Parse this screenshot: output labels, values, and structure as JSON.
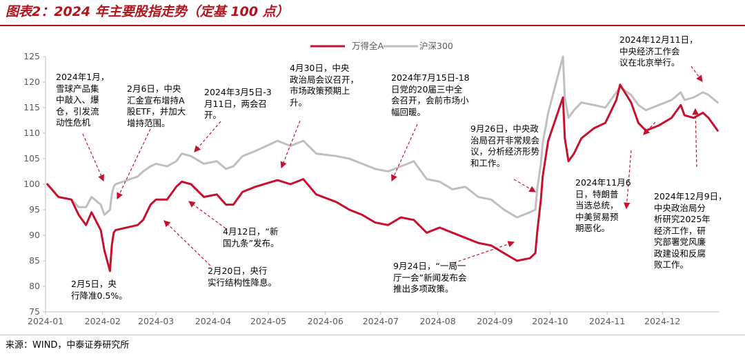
{
  "title": "图表2：2024 年主要股指走势（定基 100 点）",
  "source": "来源：WIND，中泰证券研究所",
  "colors": {
    "wande": "#c8102e",
    "hs300": "#bfbfbf",
    "accent": "#b5121b"
  },
  "chart_data": {
    "type": "line",
    "x_ticks": [
      "2024-01",
      "2024-02",
      "2024-03",
      "2024-04",
      "2024-05",
      "2024-06",
      "2024-07",
      "2024-08",
      "2024-09",
      "2024-10",
      "2024-11",
      "2024-12"
    ],
    "ylim": [
      75,
      125
    ],
    "y_ticks": [
      75,
      80,
      85,
      90,
      95,
      100,
      105,
      110,
      115,
      120,
      125
    ],
    "legend_position": "top-center",
    "series": [
      {
        "name": "万得全A",
        "color": "#c8102e",
        "points": [
          [
            "2024-01-02",
            100
          ],
          [
            "2024-01-08",
            97.5
          ],
          [
            "2024-01-15",
            97
          ],
          [
            "2024-01-19",
            94
          ],
          [
            "2024-01-23",
            92
          ],
          [
            "2024-01-26",
            94.5
          ],
          [
            "2024-01-31",
            91
          ],
          [
            "2024-02-02",
            87
          ],
          [
            "2024-02-05",
            83
          ],
          [
            "2024-02-06",
            88
          ],
          [
            "2024-02-07",
            90.5
          ],
          [
            "2024-02-08",
            91
          ],
          [
            "2024-02-20",
            92
          ],
          [
            "2024-02-23",
            93
          ],
          [
            "2024-02-27",
            96
          ],
          [
            "2024-03-01",
            97
          ],
          [
            "2024-03-07",
            97
          ],
          [
            "2024-03-12",
            99.5
          ],
          [
            "2024-03-15",
            100.5
          ],
          [
            "2024-03-20",
            100
          ],
          [
            "2024-03-27",
            97.5
          ],
          [
            "2024-04-03",
            98
          ],
          [
            "2024-04-08",
            96
          ],
          [
            "2024-04-12",
            96
          ],
          [
            "2024-04-17",
            98.5
          ],
          [
            "2024-04-24",
            99.5
          ],
          [
            "2024-05-06",
            100.8
          ],
          [
            "2024-05-13",
            100
          ],
          [
            "2024-05-20",
            101
          ],
          [
            "2024-05-27",
            98
          ],
          [
            "2024-06-07",
            96.5
          ],
          [
            "2024-06-14",
            95
          ],
          [
            "2024-06-21",
            94
          ],
          [
            "2024-06-28",
            92.5
          ],
          [
            "2024-07-05",
            92
          ],
          [
            "2024-07-12",
            93.5
          ],
          [
            "2024-07-19",
            93
          ],
          [
            "2024-07-26",
            90.5
          ],
          [
            "2024-08-02",
            91.5
          ],
          [
            "2024-08-09",
            90.5
          ],
          [
            "2024-08-16",
            89.5
          ],
          [
            "2024-08-23",
            88.5
          ],
          [
            "2024-08-30",
            88
          ],
          [
            "2024-09-06",
            86.5
          ],
          [
            "2024-09-13",
            85
          ],
          [
            "2024-09-20",
            85.5
          ],
          [
            "2024-09-23",
            86.5
          ],
          [
            "2024-09-24",
            90.5
          ],
          [
            "2024-09-26",
            97
          ],
          [
            "2024-09-27",
            101.5
          ],
          [
            "2024-09-30",
            108.5
          ],
          [
            "2024-10-08",
            117
          ],
          [
            "2024-10-09",
            109
          ],
          [
            "2024-10-11",
            104.5
          ],
          [
            "2024-10-14",
            106
          ],
          [
            "2024-10-18",
            109
          ],
          [
            "2024-10-25",
            111
          ],
          [
            "2024-10-31",
            112
          ],
          [
            "2024-11-06",
            116.5
          ],
          [
            "2024-11-08",
            119.5
          ],
          [
            "2024-11-14",
            116
          ],
          [
            "2024-11-18",
            112
          ],
          [
            "2024-11-22",
            110.5
          ],
          [
            "2024-11-29",
            111.5
          ],
          [
            "2024-12-06",
            113
          ],
          [
            "2024-12-11",
            115.5
          ],
          [
            "2024-12-13",
            113.5
          ],
          [
            "2024-12-18",
            113
          ],
          [
            "2024-12-23",
            114
          ],
          [
            "2024-12-26",
            113
          ],
          [
            "2024-12-31",
            110.5
          ]
        ]
      },
      {
        "name": "沪深300",
        "color": "#bfbfbf",
        "points": [
          [
            "2024-01-02",
            100
          ],
          [
            "2024-01-08",
            97.5
          ],
          [
            "2024-01-15",
            97
          ],
          [
            "2024-01-19",
            95.5
          ],
          [
            "2024-01-23",
            95.5
          ],
          [
            "2024-01-26",
            97.5
          ],
          [
            "2024-01-31",
            96
          ],
          [
            "2024-02-02",
            94
          ],
          [
            "2024-02-05",
            95
          ],
          [
            "2024-02-06",
            98
          ],
          [
            "2024-02-07",
            99.5
          ],
          [
            "2024-02-08",
            100
          ],
          [
            "2024-02-20",
            101.5
          ],
          [
            "2024-02-23",
            102.5
          ],
          [
            "2024-02-27",
            103.5
          ],
          [
            "2024-03-01",
            104
          ],
          [
            "2024-03-07",
            103.5
          ],
          [
            "2024-03-12",
            104.5
          ],
          [
            "2024-03-15",
            106
          ],
          [
            "2024-03-20",
            105.5
          ],
          [
            "2024-03-27",
            104
          ],
          [
            "2024-04-03",
            104.5
          ],
          [
            "2024-04-08",
            103
          ],
          [
            "2024-04-12",
            103.5
          ],
          [
            "2024-04-17",
            105.5
          ],
          [
            "2024-04-24",
            106.5
          ],
          [
            "2024-05-06",
            108.5
          ],
          [
            "2024-05-13",
            107.5
          ],
          [
            "2024-05-20",
            108.5
          ],
          [
            "2024-05-27",
            106
          ],
          [
            "2024-06-07",
            105.5
          ],
          [
            "2024-06-14",
            105
          ],
          [
            "2024-06-21",
            104
          ],
          [
            "2024-06-28",
            103
          ],
          [
            "2024-07-05",
            102.5
          ],
          [
            "2024-07-12",
            103.5
          ],
          [
            "2024-07-19",
            104.5
          ],
          [
            "2024-07-26",
            101
          ],
          [
            "2024-08-02",
            100.5
          ],
          [
            "2024-08-09",
            99
          ],
          [
            "2024-08-16",
            99.5
          ],
          [
            "2024-08-23",
            97.5
          ],
          [
            "2024-08-30",
            97
          ],
          [
            "2024-09-06",
            95
          ],
          [
            "2024-09-13",
            93.5
          ],
          [
            "2024-09-20",
            94.5
          ],
          [
            "2024-09-23",
            95
          ],
          [
            "2024-09-24",
            99
          ],
          [
            "2024-09-26",
            104
          ],
          [
            "2024-09-27",
            108
          ],
          [
            "2024-09-30",
            114
          ],
          [
            "2024-10-08",
            125
          ],
          [
            "2024-10-09",
            117
          ],
          [
            "2024-10-11",
            113
          ],
          [
            "2024-10-14",
            114.5
          ],
          [
            "2024-10-18",
            116
          ],
          [
            "2024-10-25",
            115.5
          ],
          [
            "2024-10-31",
            115
          ],
          [
            "2024-11-06",
            118
          ],
          [
            "2024-11-08",
            119
          ],
          [
            "2024-11-14",
            117.5
          ],
          [
            "2024-11-18",
            115.5
          ],
          [
            "2024-11-22",
            114.5
          ],
          [
            "2024-11-29",
            115.5
          ],
          [
            "2024-12-06",
            116.5
          ],
          [
            "2024-12-11",
            118
          ],
          [
            "2024-12-13",
            116.5
          ],
          [
            "2024-12-18",
            117
          ],
          [
            "2024-12-23",
            118
          ],
          [
            "2024-12-26",
            117.5
          ],
          [
            "2024-12-31",
            116
          ]
        ]
      }
    ],
    "annotations": [
      {
        "text": "2024年1月，\n雪球产品集\n中敲入、爆\n仓，引发流\n动性危机"
      },
      {
        "text": "2月6日，中央\n汇金宣布增持A\n股ETF，并加大\n增持范围。"
      },
      {
        "text": "2024年3月5日-3\n月11日，两会召\n开。"
      },
      {
        "text": "4月30日，中央\n政治局会议召开，\n市场政策预期上\n升。"
      },
      {
        "text": "2024年7月15日-18\n日党的20届三中全\n会召开，会前市场小\n幅回暖。"
      },
      {
        "text": "9月26日，中央政\n治局召开非常规会\n议，分析经济形势\n和工作。"
      },
      {
        "text": "2024年12月11日，\n中央经济工作会\n议在北京举行。"
      },
      {
        "text": "2024年11月6\n日，特朗普\n当选总统，\n中美贸易预\n期恶化。"
      },
      {
        "text": "2024年12月9日，\n中央政治局分\n析研究2025年\n经济工作，研\n究部署党风廉\n政建设和反腐\n败工作。"
      },
      {
        "text": "4月12日，“新\n国九条”发布。"
      },
      {
        "text": "2月20日，央行\n实行结构性降息。"
      },
      {
        "text": "9月24日，“一局一\n厅一会”新闻发布会\n推出多项政策。"
      },
      {
        "text": "2月5日，央\n行降准0.5%。"
      }
    ]
  }
}
